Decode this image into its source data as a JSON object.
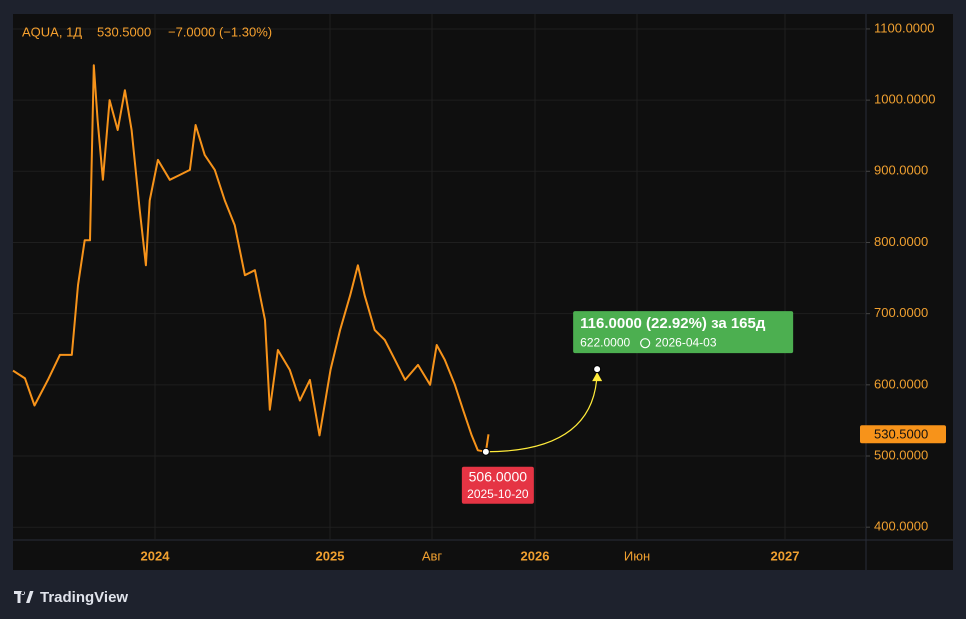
{
  "chart_data": {
    "type": "line",
    "symbol": "AQUA, 1Д",
    "change_label": "−7.0000 (−1.30%)",
    "last_price": {
      "value": 530.5,
      "label": "530.5000"
    },
    "series": [
      {
        "color": "#f7931a",
        "x": [
          "2023-03-10",
          "2023-04-04",
          "2023-04-24",
          "2023-05-22",
          "2023-06-16",
          "2023-07-11",
          "2023-07-24",
          "2023-08-07",
          "2023-08-18",
          "2023-08-26",
          "2023-09-03",
          "2023-09-14",
          "2023-09-28",
          "2023-10-15",
          "2023-10-30",
          "2023-11-13",
          "2023-11-30",
          "2023-12-13",
          "2023-12-21",
          "2024-01-07",
          "2024-02-01",
          "2024-02-22",
          "2024-03-14",
          "2024-03-26",
          "2024-04-14",
          "2024-05-05",
          "2024-05-26",
          "2024-06-16",
          "2024-07-07",
          "2024-07-28",
          "2024-08-18",
          "2024-08-28",
          "2024-09-14",
          "2024-10-09",
          "2024-10-30",
          "2024-11-20",
          "2024-12-10",
          "2025-01-02",
          "2025-01-22",
          "2025-02-12",
          "2025-02-28",
          "2025-03-14",
          "2025-04-04",
          "2025-04-25",
          "2025-05-16",
          "2025-06-06",
          "2025-07-03",
          "2025-07-28",
          "2025-08-08",
          "2025-08-20",
          "2025-09-04",
          "2025-09-16",
          "2025-09-29",
          "2025-10-08",
          "2025-10-20",
          "2025-10-24"
        ],
        "values": [
          620,
          609,
          571,
          607,
          642,
          642,
          740,
          803,
          803,
          1049,
          972,
          888,
          1000,
          958,
          1014,
          958,
          846,
          768,
          859,
          916,
          888,
          895,
          902,
          965,
          923,
          902,
          859,
          824,
          754,
          761,
          691,
          565,
          649,
          621,
          578,
          607,
          529,
          621,
          677,
          726,
          768,
          726,
          677,
          663,
          635,
          607,
          628,
          600,
          656,
          635,
          600,
          565,
          529,
          508,
          506,
          530.5
        ]
      }
    ],
    "ylim": [
      382,
      1121
    ],
    "yticks": [
      {
        "value": 400,
        "label": "400.0000"
      },
      {
        "value": 500,
        "label": "500.0000"
      },
      {
        "value": 600,
        "label": "600.0000"
      },
      {
        "value": 700,
        "label": "700.0000"
      },
      {
        "value": 800,
        "label": "800.0000"
      },
      {
        "value": 900,
        "label": "900.0000"
      },
      {
        "value": 1000,
        "label": "1000.0000"
      },
      {
        "value": 1100,
        "label": "1100.0000"
      }
    ],
    "xlim": [
      "2023-03-10",
      "2027-04-28"
    ],
    "xticks": [
      {
        "value": "2024-01-01",
        "label": "2024"
      },
      {
        "value": "2025-01-01",
        "label": "2025"
      },
      {
        "value": "2025-08-01",
        "label": "Авг"
      },
      {
        "value": "2026-01-01",
        "label": "2026"
      },
      {
        "value": "2026-06-01",
        "label": "Июн"
      },
      {
        "value": "2027-01-01",
        "label": "2027"
      }
    ],
    "grid": true,
    "annotation": {
      "color": "#ffeb3b",
      "start": {
        "x": "2025-10-20",
        "value": 506,
        "value_label": "506.0000",
        "color": "#e53444"
      },
      "end": {
        "x": "2026-04-03",
        "value": 622,
        "value_label": "622.0000",
        "color": "#4caf50"
      },
      "change_label": "116.0000 (22.92%) за 165д"
    }
  },
  "branding": "TradingView"
}
